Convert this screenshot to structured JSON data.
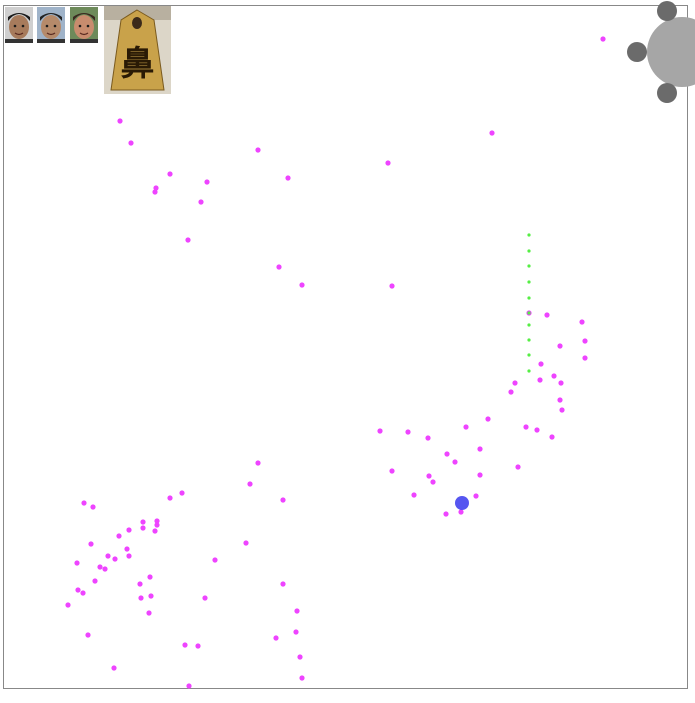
{
  "colors": {
    "background": "#ffffff",
    "border": "#888888",
    "dot": "#ee44ff",
    "trail": "#55ee44",
    "player": "#4444ee",
    "control_main": "#a6a6a6",
    "control_knob": "#6b6b6b",
    "card_gold": "#c9a24a",
    "card_dark": "#7a5a1e"
  },
  "players": [
    {
      "name": "player-1",
      "skin": "#a77b5c",
      "hair": "#1a1a1a",
      "bg": "#cfcfcf"
    },
    {
      "name": "player-2",
      "skin": "#b58a6a",
      "hair": "#222222",
      "bg": "#9fb3c9"
    },
    {
      "name": "player-3",
      "skin": "#c88c6e",
      "hair": "#3a2a20",
      "bg": "#6d8a5a"
    }
  ],
  "featured_piece": {
    "glyph": "鼻"
  }
}
